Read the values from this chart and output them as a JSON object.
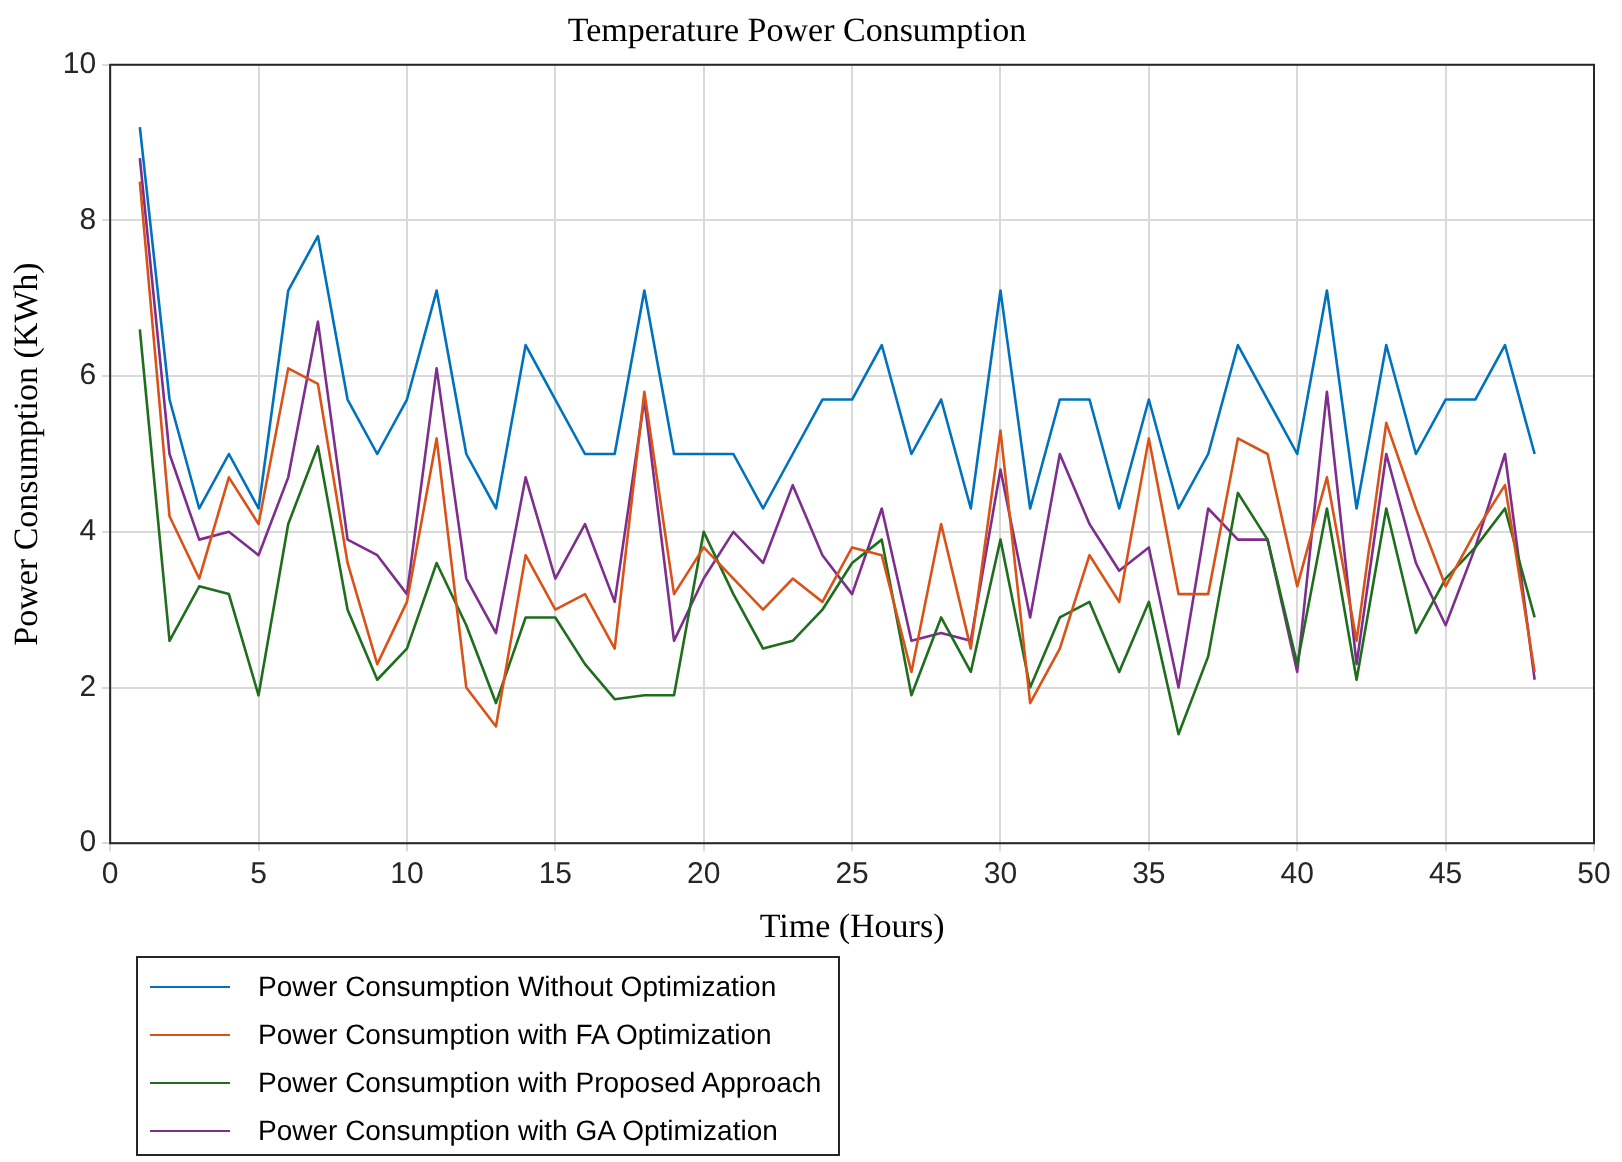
{
  "chart_data": {
    "type": "line",
    "title": "Temperature Power Consumption",
    "xlabel": "Time (Hours)",
    "ylabel": "Power Consumption (KWh)",
    "x": [
      1,
      2,
      3,
      4,
      5,
      6,
      7,
      8,
      9,
      10,
      11,
      12,
      13,
      14,
      15,
      16,
      17,
      18,
      19,
      20,
      21,
      22,
      23,
      24,
      25,
      26,
      27,
      28,
      29,
      30,
      31,
      32,
      33,
      34,
      35,
      36,
      37,
      38,
      39,
      40,
      41,
      42,
      43,
      44,
      45,
      46,
      47,
      48
    ],
    "series": [
      {
        "name": "Power Consumption Without Optimization",
        "color": "#0072bd",
        "values": [
          9.2,
          5.7,
          4.3,
          5.0,
          4.3,
          7.1,
          7.8,
          5.7,
          5.0,
          5.7,
          7.1,
          5.0,
          4.3,
          6.4,
          5.7,
          5.0,
          5.0,
          7.1,
          5.0,
          5.0,
          5.0,
          4.3,
          5.0,
          5.7,
          5.7,
          6.4,
          5.0,
          5.7,
          4.3,
          7.1,
          4.3,
          5.7,
          5.7,
          4.3,
          5.7,
          4.3,
          5.0,
          6.4,
          5.7,
          5.0,
          7.1,
          4.3,
          6.4,
          5.0,
          5.7,
          5.7,
          6.4,
          5.0
        ]
      },
      {
        "name": "Power Consumption with FA Optimization",
        "color": "#d95319",
        "values": [
          8.5,
          4.2,
          3.4,
          4.7,
          4.1,
          6.1,
          5.9,
          3.6,
          2.3,
          3.1,
          5.2,
          2.0,
          1.5,
          3.7,
          3.0,
          3.2,
          2.5,
          5.8,
          3.2,
          3.8,
          3.4,
          3.0,
          3.4,
          3.1,
          3.8,
          3.7,
          2.2,
          4.1,
          2.5,
          5.3,
          1.8,
          2.5,
          3.7,
          3.1,
          5.2,
          3.2,
          3.2,
          5.2,
          5.0,
          3.3,
          4.7,
          2.6,
          5.4,
          4.3,
          3.3,
          4.0,
          4.6,
          2.2
        ]
      },
      {
        "name": "Power Consumption with Proposed Approach",
        "color": "#1e6e1e",
        "values": [
          6.6,
          2.6,
          3.3,
          3.2,
          1.9,
          4.1,
          5.1,
          3.0,
          2.1,
          2.5,
          3.6,
          2.8,
          1.8,
          2.9,
          2.9,
          2.3,
          1.85,
          1.9,
          1.9,
          4.0,
          3.2,
          2.5,
          2.6,
          3.0,
          3.6,
          3.9,
          1.9,
          2.9,
          2.2,
          3.9,
          2.0,
          2.9,
          3.1,
          2.2,
          3.1,
          1.4,
          2.4,
          4.5,
          3.9,
          2.3,
          4.3,
          2.1,
          4.3,
          2.7,
          3.4,
          3.8,
          4.3,
          2.9
        ]
      },
      {
        "name": "Power Consumption with GA Optimization",
        "color": "#7e2f8e",
        "values": [
          8.8,
          5.0,
          3.9,
          4.0,
          3.7,
          4.7,
          6.7,
          3.9,
          3.7,
          3.2,
          6.1,
          3.4,
          2.7,
          4.7,
          3.4,
          4.1,
          3.1,
          5.7,
          2.6,
          3.4,
          4.0,
          3.6,
          4.6,
          3.7,
          3.2,
          4.3,
          2.6,
          2.7,
          2.6,
          4.8,
          2.9,
          5.0,
          4.1,
          3.5,
          3.8,
          2.0,
          4.3,
          3.9,
          3.9,
          2.2,
          5.8,
          2.3,
          5.0,
          3.6,
          2.8,
          3.8,
          5.0,
          2.1
        ]
      }
    ],
    "xlim": [
      0,
      50
    ],
    "xticks": [
      0,
      5,
      10,
      15,
      20,
      25,
      30,
      35,
      40,
      45,
      50
    ],
    "ylim": [
      0,
      10
    ],
    "yticks": [
      0,
      2,
      4,
      6,
      8,
      10
    ],
    "grid": true,
    "legend": "bottom left",
    "marker": "none",
    "line_style": "solid"
  }
}
